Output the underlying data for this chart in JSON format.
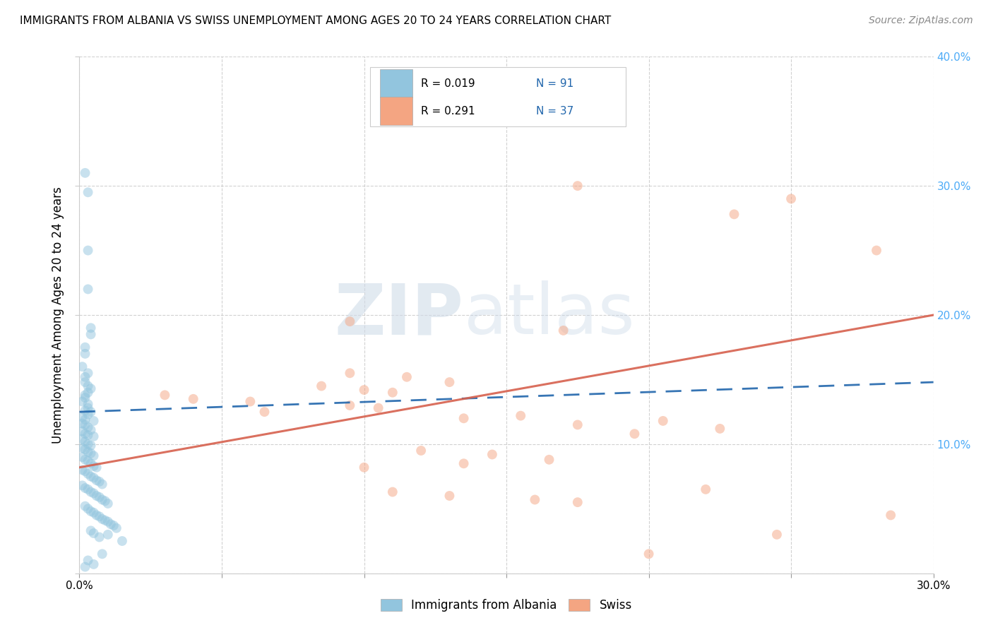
{
  "title": "IMMIGRANTS FROM ALBANIA VS SWISS UNEMPLOYMENT AMONG AGES 20 TO 24 YEARS CORRELATION CHART",
  "source": "Source: ZipAtlas.com",
  "ylabel": "Unemployment Among Ages 20 to 24 years",
  "x_min": 0.0,
  "x_max": 0.3,
  "y_min": 0.0,
  "y_max": 0.4,
  "x_ticks": [
    0.0,
    0.05,
    0.1,
    0.15,
    0.2,
    0.25,
    0.3
  ],
  "y_ticks": [
    0.0,
    0.1,
    0.2,
    0.3,
    0.4
  ],
  "background_color": "#ffffff",
  "grid_color": "#cccccc",
  "watermark_zip": "ZIP",
  "watermark_atlas": "atlas",
  "legend_label1": "Immigrants from Albania",
  "legend_label2": "Swiss",
  "blue_color": "#92c5de",
  "pink_color": "#f4a582",
  "line_blue_color": "#2166ac",
  "line_pink_color": "#d6604d",
  "blue_scatter": [
    [
      0.002,
      0.31
    ],
    [
      0.003,
      0.295
    ],
    [
      0.003,
      0.25
    ],
    [
      0.003,
      0.22
    ],
    [
      0.004,
      0.19
    ],
    [
      0.004,
      0.185
    ],
    [
      0.002,
      0.175
    ],
    [
      0.002,
      0.17
    ],
    [
      0.001,
      0.16
    ],
    [
      0.003,
      0.155
    ],
    [
      0.002,
      0.152
    ],
    [
      0.002,
      0.148
    ],
    [
      0.003,
      0.145
    ],
    [
      0.004,
      0.143
    ],
    [
      0.003,
      0.14
    ],
    [
      0.002,
      0.138
    ],
    [
      0.002,
      0.136
    ],
    [
      0.001,
      0.133
    ],
    [
      0.003,
      0.131
    ],
    [
      0.003,
      0.128
    ],
    [
      0.002,
      0.126
    ],
    [
      0.004,
      0.125
    ],
    [
      0.003,
      0.123
    ],
    [
      0.001,
      0.121
    ],
    [
      0.002,
      0.119
    ],
    [
      0.005,
      0.118
    ],
    [
      0.001,
      0.116
    ],
    [
      0.002,
      0.115
    ],
    [
      0.003,
      0.113
    ],
    [
      0.004,
      0.111
    ],
    [
      0.001,
      0.11
    ],
    [
      0.002,
      0.108
    ],
    [
      0.003,
      0.107
    ],
    [
      0.005,
      0.106
    ],
    [
      0.001,
      0.104
    ],
    [
      0.002,
      0.102
    ],
    [
      0.003,
      0.1
    ],
    [
      0.004,
      0.099
    ],
    [
      0.001,
      0.097
    ],
    [
      0.002,
      0.096
    ],
    [
      0.003,
      0.094
    ],
    [
      0.004,
      0.093
    ],
    [
      0.005,
      0.091
    ],
    [
      0.001,
      0.09
    ],
    [
      0.002,
      0.088
    ],
    [
      0.003,
      0.087
    ],
    [
      0.004,
      0.085
    ],
    [
      0.005,
      0.083
    ],
    [
      0.006,
      0.082
    ],
    [
      0.001,
      0.08
    ],
    [
      0.002,
      0.079
    ],
    [
      0.003,
      0.077
    ],
    [
      0.004,
      0.075
    ],
    [
      0.005,
      0.074
    ],
    [
      0.006,
      0.072
    ],
    [
      0.007,
      0.071
    ],
    [
      0.008,
      0.069
    ],
    [
      0.001,
      0.068
    ],
    [
      0.002,
      0.066
    ],
    [
      0.003,
      0.065
    ],
    [
      0.004,
      0.063
    ],
    [
      0.005,
      0.062
    ],
    [
      0.006,
      0.06
    ],
    [
      0.007,
      0.059
    ],
    [
      0.008,
      0.057
    ],
    [
      0.009,
      0.056
    ],
    [
      0.01,
      0.054
    ],
    [
      0.002,
      0.052
    ],
    [
      0.003,
      0.05
    ],
    [
      0.004,
      0.048
    ],
    [
      0.005,
      0.047
    ],
    [
      0.006,
      0.045
    ],
    [
      0.007,
      0.044
    ],
    [
      0.008,
      0.042
    ],
    [
      0.009,
      0.041
    ],
    [
      0.01,
      0.04
    ],
    [
      0.011,
      0.038
    ],
    [
      0.012,
      0.037
    ],
    [
      0.013,
      0.035
    ],
    [
      0.004,
      0.033
    ],
    [
      0.005,
      0.031
    ],
    [
      0.01,
      0.03
    ],
    [
      0.007,
      0.028
    ],
    [
      0.015,
      0.025
    ],
    [
      0.008,
      0.015
    ],
    [
      0.003,
      0.01
    ],
    [
      0.005,
      0.007
    ],
    [
      0.002,
      0.005
    ]
  ],
  "pink_scatter": [
    [
      0.175,
      0.3
    ],
    [
      0.25,
      0.29
    ],
    [
      0.23,
      0.278
    ],
    [
      0.28,
      0.25
    ],
    [
      0.095,
      0.195
    ],
    [
      0.17,
      0.188
    ],
    [
      0.095,
      0.155
    ],
    [
      0.115,
      0.152
    ],
    [
      0.13,
      0.148
    ],
    [
      0.085,
      0.145
    ],
    [
      0.1,
      0.142
    ],
    [
      0.11,
      0.14
    ],
    [
      0.03,
      0.138
    ],
    [
      0.04,
      0.135
    ],
    [
      0.06,
      0.133
    ],
    [
      0.095,
      0.13
    ],
    [
      0.105,
      0.128
    ],
    [
      0.065,
      0.125
    ],
    [
      0.155,
      0.122
    ],
    [
      0.135,
      0.12
    ],
    [
      0.205,
      0.118
    ],
    [
      0.175,
      0.115
    ],
    [
      0.225,
      0.112
    ],
    [
      0.195,
      0.108
    ],
    [
      0.12,
      0.095
    ],
    [
      0.145,
      0.092
    ],
    [
      0.165,
      0.088
    ],
    [
      0.135,
      0.085
    ],
    [
      0.1,
      0.082
    ],
    [
      0.22,
      0.065
    ],
    [
      0.11,
      0.063
    ],
    [
      0.13,
      0.06
    ],
    [
      0.16,
      0.057
    ],
    [
      0.175,
      0.055
    ],
    [
      0.285,
      0.045
    ],
    [
      0.2,
      0.015
    ],
    [
      0.245,
      0.03
    ]
  ],
  "blue_line_x": [
    0.0,
    0.3
  ],
  "blue_line_y": [
    0.125,
    0.148
  ],
  "pink_line_x": [
    0.0,
    0.3
  ],
  "pink_line_y": [
    0.082,
    0.2
  ],
  "scatter_size": 100,
  "scatter_alpha": 0.5
}
